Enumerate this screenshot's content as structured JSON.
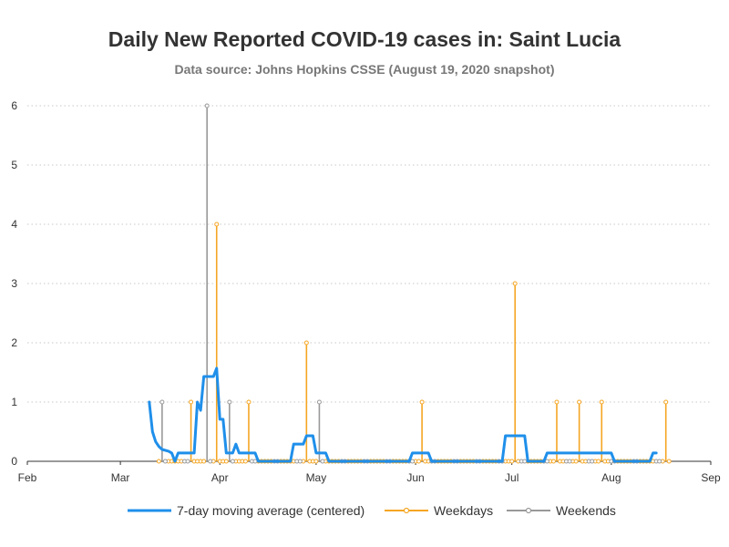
{
  "chart_data": {
    "type": "line",
    "title": "Daily New Reported COVID-19 cases in: Saint Lucia",
    "subtitle": "Data source: Johns Hopkins CSSE (August 19, 2020 snapshot)",
    "x_range": [
      "2020-02-01",
      "2020-09-01"
    ],
    "ylim": [
      0,
      6
    ],
    "y_ticks": [
      "0",
      "1",
      "2",
      "3",
      "4",
      "5",
      "6"
    ],
    "x_ticks": [
      {
        "date": "2020-02-01",
        "label": "Feb"
      },
      {
        "date": "2020-03-01",
        "label": "Mar"
      },
      {
        "date": "2020-04-01",
        "label": "Apr"
      },
      {
        "date": "2020-05-01",
        "label": "May"
      },
      {
        "date": "2020-06-01",
        "label": "Jun"
      },
      {
        "date": "2020-07-01",
        "label": "Jul"
      },
      {
        "date": "2020-08-01",
        "label": "Aug"
      },
      {
        "date": "2020-09-01",
        "label": "Sep"
      }
    ],
    "grid": true,
    "legend_position": "bottom",
    "series": [
      {
        "name": "7-day moving average (centered)",
        "type": "line",
        "color": "#1f8fea",
        "points": [
          [
            "2020-03-10",
            1.0
          ],
          [
            "2020-03-11",
            0.5
          ],
          [
            "2020-03-12",
            0.33
          ],
          [
            "2020-03-13",
            0.25
          ],
          [
            "2020-03-14",
            0.2
          ],
          [
            "2020-03-16",
            0.17
          ],
          [
            "2020-03-17",
            0.14
          ],
          [
            "2020-03-18",
            0.0
          ],
          [
            "2020-03-19",
            0.14
          ],
          [
            "2020-03-24",
            0.14
          ],
          [
            "2020-03-25",
            1.0
          ],
          [
            "2020-03-26",
            0.86
          ],
          [
            "2020-03-27",
            1.43
          ],
          [
            "2020-03-30",
            1.43
          ],
          [
            "2020-03-31",
            1.57
          ],
          [
            "2020-04-01",
            0.71
          ],
          [
            "2020-04-02",
            0.71
          ],
          [
            "2020-04-03",
            0.14
          ],
          [
            "2020-04-05",
            0.14
          ],
          [
            "2020-04-06",
            0.29
          ],
          [
            "2020-04-07",
            0.14
          ],
          [
            "2020-04-12",
            0.14
          ],
          [
            "2020-04-13",
            0.0
          ],
          [
            "2020-04-23",
            0.0
          ],
          [
            "2020-04-24",
            0.29
          ],
          [
            "2020-04-27",
            0.29
          ],
          [
            "2020-04-28",
            0.43
          ],
          [
            "2020-04-30",
            0.43
          ],
          [
            "2020-05-01",
            0.14
          ],
          [
            "2020-05-04",
            0.14
          ],
          [
            "2020-05-05",
            0.0
          ],
          [
            "2020-05-30",
            0.0
          ],
          [
            "2020-05-31",
            0.14
          ],
          [
            "2020-06-05",
            0.14
          ],
          [
            "2020-06-06",
            0.0
          ],
          [
            "2020-06-28",
            0.0
          ],
          [
            "2020-06-29",
            0.43
          ],
          [
            "2020-07-05",
            0.43
          ],
          [
            "2020-07-06",
            0.0
          ],
          [
            "2020-07-11",
            0.0
          ],
          [
            "2020-07-12",
            0.14
          ],
          [
            "2020-08-01",
            0.14
          ],
          [
            "2020-08-02",
            0.0
          ],
          [
            "2020-08-13",
            0.0
          ],
          [
            "2020-08-14",
            0.14
          ],
          [
            "2020-08-15",
            0.14
          ]
        ]
      },
      {
        "name": "Weekdays",
        "type": "needle",
        "color": "#f5a623",
        "points": [
          [
            "2020-03-13",
            0
          ],
          [
            "2020-03-16",
            0
          ],
          [
            "2020-03-17",
            0
          ],
          [
            "2020-03-18",
            0
          ],
          [
            "2020-03-19",
            0
          ],
          [
            "2020-03-20",
            0
          ],
          [
            "2020-03-23",
            1
          ],
          [
            "2020-03-24",
            0
          ],
          [
            "2020-03-25",
            0
          ],
          [
            "2020-03-26",
            0
          ],
          [
            "2020-03-27",
            0
          ],
          [
            "2020-03-30",
            0
          ],
          [
            "2020-03-31",
            4
          ],
          [
            "2020-04-01",
            0
          ],
          [
            "2020-04-02",
            0
          ],
          [
            "2020-04-03",
            0
          ],
          [
            "2020-04-06",
            0
          ],
          [
            "2020-04-07",
            0
          ],
          [
            "2020-04-08",
            0
          ],
          [
            "2020-04-09",
            0
          ],
          [
            "2020-04-10",
            1
          ],
          [
            "2020-04-13",
            0
          ],
          [
            "2020-04-14",
            0
          ],
          [
            "2020-04-15",
            0
          ],
          [
            "2020-04-16",
            0
          ],
          [
            "2020-04-17",
            0
          ],
          [
            "2020-04-20",
            0
          ],
          [
            "2020-04-21",
            0
          ],
          [
            "2020-04-22",
            0
          ],
          [
            "2020-04-23",
            0
          ],
          [
            "2020-04-24",
            0
          ],
          [
            "2020-04-27",
            0
          ],
          [
            "2020-04-28",
            2
          ],
          [
            "2020-04-29",
            0
          ],
          [
            "2020-04-30",
            0
          ],
          [
            "2020-05-01",
            0
          ],
          [
            "2020-05-04",
            0
          ],
          [
            "2020-05-05",
            0
          ],
          [
            "2020-05-06",
            0
          ],
          [
            "2020-05-07",
            0
          ],
          [
            "2020-05-08",
            0
          ],
          [
            "2020-05-11",
            0
          ],
          [
            "2020-05-12",
            0
          ],
          [
            "2020-05-13",
            0
          ],
          [
            "2020-05-14",
            0
          ],
          [
            "2020-05-15",
            0
          ],
          [
            "2020-05-18",
            0
          ],
          [
            "2020-05-19",
            0
          ],
          [
            "2020-05-20",
            0
          ],
          [
            "2020-05-21",
            0
          ],
          [
            "2020-05-22",
            0
          ],
          [
            "2020-05-25",
            0
          ],
          [
            "2020-05-26",
            0
          ],
          [
            "2020-05-27",
            0
          ],
          [
            "2020-05-28",
            0
          ],
          [
            "2020-05-29",
            0
          ],
          [
            "2020-06-01",
            0
          ],
          [
            "2020-06-02",
            0
          ],
          [
            "2020-06-03",
            1
          ],
          [
            "2020-06-04",
            0
          ],
          [
            "2020-06-05",
            0
          ],
          [
            "2020-06-08",
            0
          ],
          [
            "2020-06-09",
            0
          ],
          [
            "2020-06-10",
            0
          ],
          [
            "2020-06-11",
            0
          ],
          [
            "2020-06-12",
            0
          ],
          [
            "2020-06-15",
            0
          ],
          [
            "2020-06-16",
            0
          ],
          [
            "2020-06-17",
            0
          ],
          [
            "2020-06-18",
            0
          ],
          [
            "2020-06-19",
            0
          ],
          [
            "2020-06-22",
            0
          ],
          [
            "2020-06-23",
            0
          ],
          [
            "2020-06-24",
            0
          ],
          [
            "2020-06-25",
            0
          ],
          [
            "2020-06-26",
            0
          ],
          [
            "2020-06-29",
            0
          ],
          [
            "2020-06-30",
            0
          ],
          [
            "2020-07-01",
            0
          ],
          [
            "2020-07-02",
            3
          ],
          [
            "2020-07-03",
            0
          ],
          [
            "2020-07-06",
            0
          ],
          [
            "2020-07-07",
            0
          ],
          [
            "2020-07-08",
            0
          ],
          [
            "2020-07-09",
            0
          ],
          [
            "2020-07-10",
            0
          ],
          [
            "2020-07-13",
            0
          ],
          [
            "2020-07-14",
            0
          ],
          [
            "2020-07-15",
            1
          ],
          [
            "2020-07-16",
            0
          ],
          [
            "2020-07-17",
            0
          ],
          [
            "2020-07-20",
            0
          ],
          [
            "2020-07-21",
            0
          ],
          [
            "2020-07-22",
            1
          ],
          [
            "2020-07-23",
            0
          ],
          [
            "2020-07-24",
            0
          ],
          [
            "2020-07-27",
            0
          ],
          [
            "2020-07-28",
            0
          ],
          [
            "2020-07-29",
            1
          ],
          [
            "2020-07-30",
            0
          ],
          [
            "2020-07-31",
            0
          ],
          [
            "2020-08-03",
            0
          ],
          [
            "2020-08-04",
            0
          ],
          [
            "2020-08-05",
            0
          ],
          [
            "2020-08-06",
            0
          ],
          [
            "2020-08-07",
            0
          ],
          [
            "2020-08-10",
            0
          ],
          [
            "2020-08-11",
            0
          ],
          [
            "2020-08-12",
            0
          ],
          [
            "2020-08-13",
            0
          ],
          [
            "2020-08-14",
            0
          ],
          [
            "2020-08-17",
            0
          ],
          [
            "2020-08-18",
            1
          ],
          [
            "2020-08-19",
            0
          ]
        ]
      },
      {
        "name": "Weekends",
        "type": "needle",
        "color": "#999999",
        "points": [
          [
            "2020-03-14",
            1
          ],
          [
            "2020-03-15",
            0
          ],
          [
            "2020-03-21",
            0
          ],
          [
            "2020-03-22",
            0
          ],
          [
            "2020-03-28",
            6
          ],
          [
            "2020-03-29",
            0
          ],
          [
            "2020-04-04",
            1
          ],
          [
            "2020-04-05",
            0
          ],
          [
            "2020-04-11",
            0
          ],
          [
            "2020-04-12",
            0
          ],
          [
            "2020-04-18",
            0
          ],
          [
            "2020-04-19",
            0
          ],
          [
            "2020-04-25",
            0
          ],
          [
            "2020-04-26",
            0
          ],
          [
            "2020-05-02",
            1
          ],
          [
            "2020-05-03",
            0
          ],
          [
            "2020-05-09",
            0
          ],
          [
            "2020-05-10",
            0
          ],
          [
            "2020-05-16",
            0
          ],
          [
            "2020-05-17",
            0
          ],
          [
            "2020-05-23",
            0
          ],
          [
            "2020-05-24",
            0
          ],
          [
            "2020-05-30",
            0
          ],
          [
            "2020-05-31",
            0
          ],
          [
            "2020-06-06",
            0
          ],
          [
            "2020-06-07",
            0
          ],
          [
            "2020-06-13",
            0
          ],
          [
            "2020-06-14",
            0
          ],
          [
            "2020-06-20",
            0
          ],
          [
            "2020-06-21",
            0
          ],
          [
            "2020-06-27",
            0
          ],
          [
            "2020-06-28",
            0
          ],
          [
            "2020-07-04",
            0
          ],
          [
            "2020-07-05",
            0
          ],
          [
            "2020-07-11",
            0
          ],
          [
            "2020-07-12",
            0
          ],
          [
            "2020-07-18",
            0
          ],
          [
            "2020-07-19",
            0
          ],
          [
            "2020-07-25",
            0
          ],
          [
            "2020-07-26",
            0
          ],
          [
            "2020-08-01",
            0
          ],
          [
            "2020-08-02",
            0
          ],
          [
            "2020-08-08",
            0
          ],
          [
            "2020-08-09",
            0
          ],
          [
            "2020-08-15",
            0
          ],
          [
            "2020-08-16",
            0
          ]
        ]
      }
    ]
  }
}
